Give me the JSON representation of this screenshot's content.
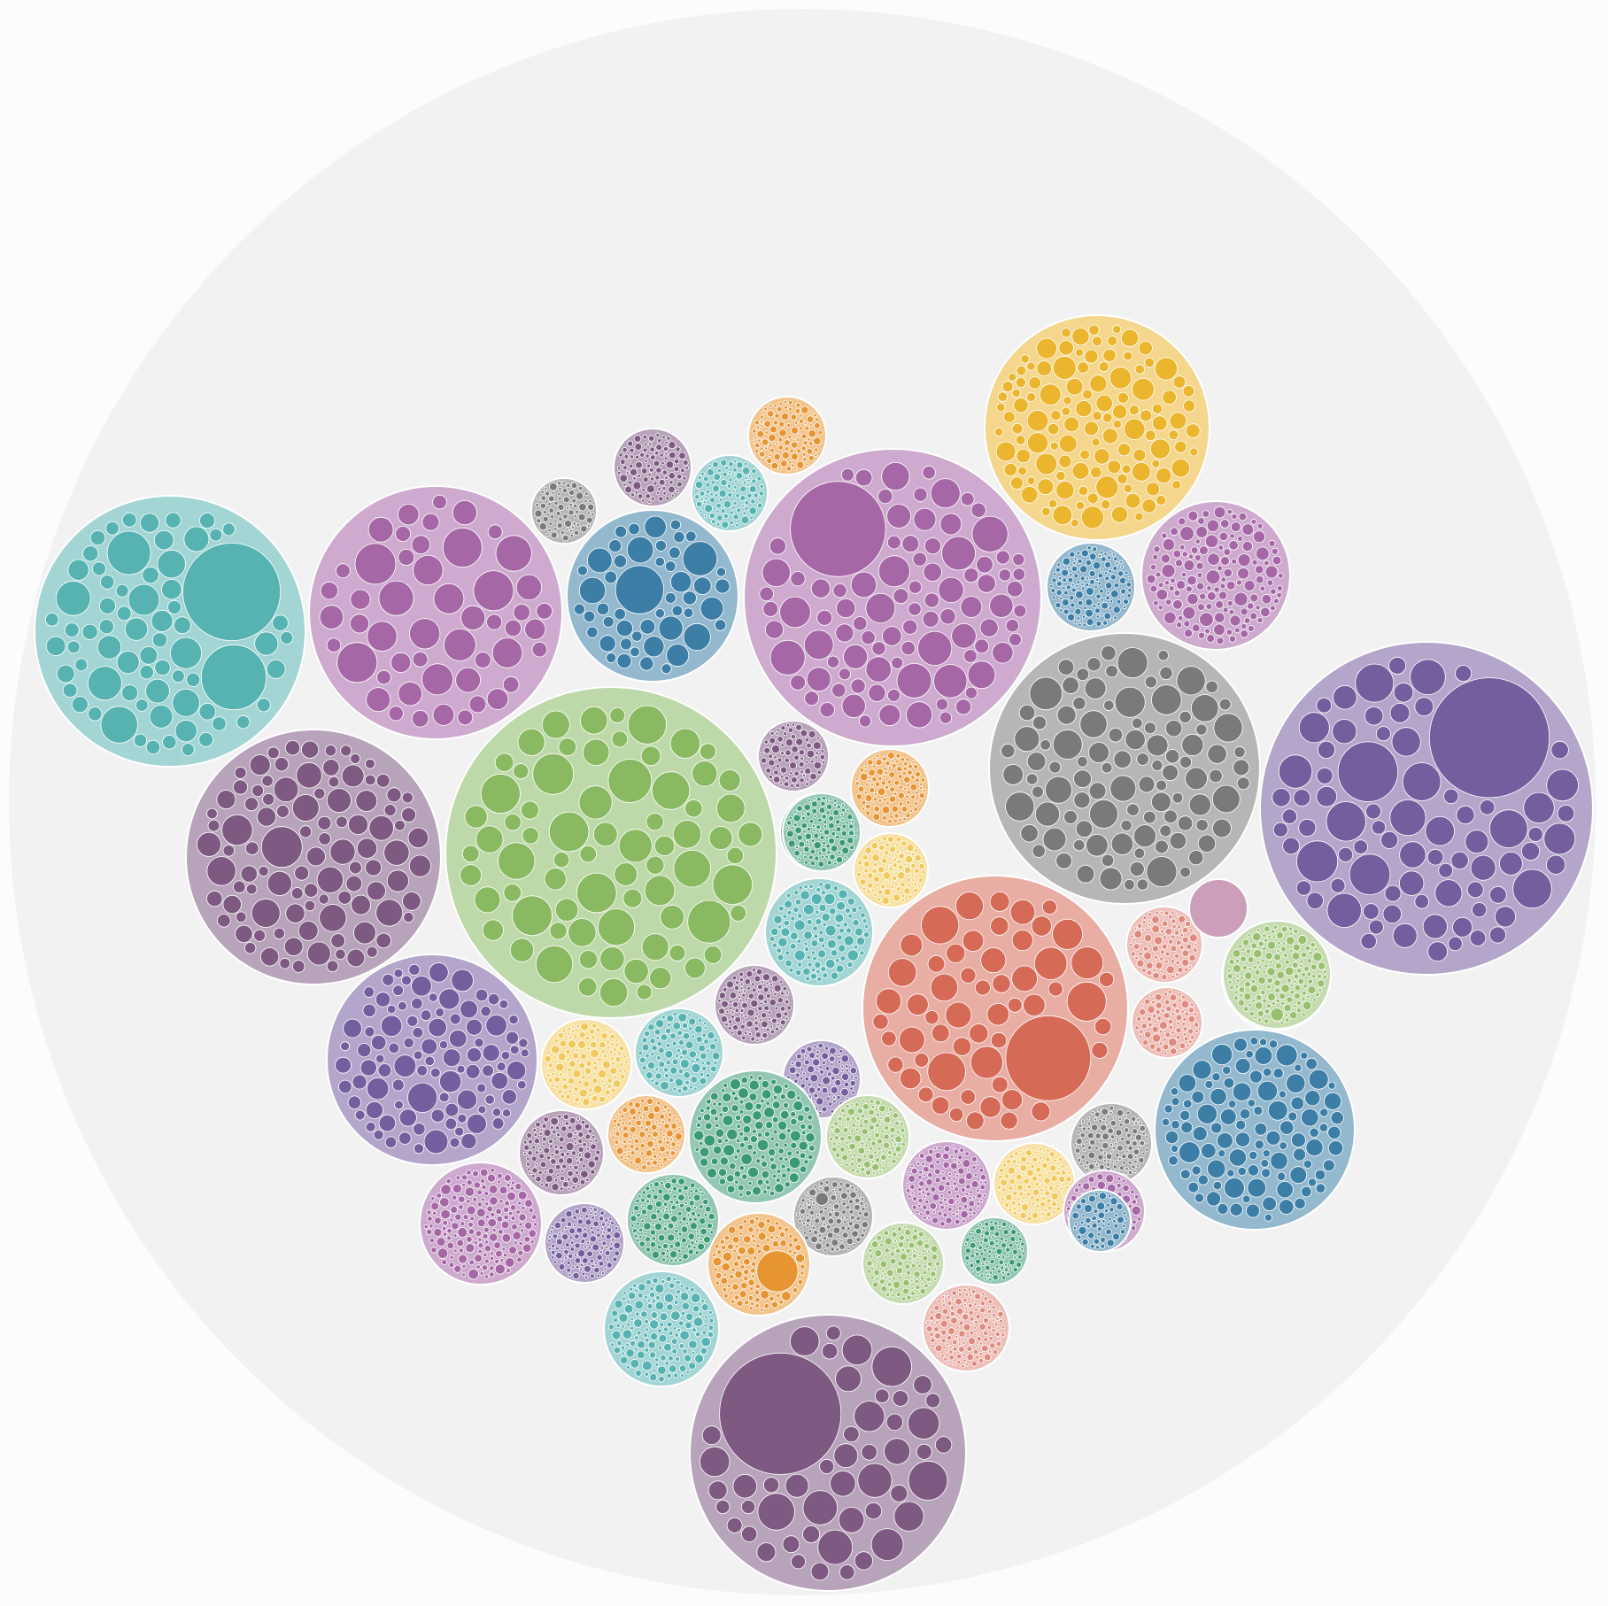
{
  "chart_data": {
    "type": "circle-packing",
    "title": "",
    "root": {
      "background_color": "#f2f2f2"
    },
    "legend": "none",
    "palette": {
      "teal": "#56b3b1",
      "purple": "#a667a6",
      "blue": "#3d7ea6",
      "green": "#89ba62",
      "gray": "#7a7a7a",
      "yellow": "#ebb52d",
      "plum": "#7e5a82",
      "violet": "#755e9e",
      "red": "#d56a57",
      "orange": "#e79432",
      "emerald": "#3a9a74",
      "magenta": "#a24e80",
      "lightyellow": "#f0c95a",
      "lightgreen": "#97c06f",
      "salmon": "#de8b7e"
    },
    "groups": [
      {
        "id": "g01",
        "color": "teal",
        "leaf_count": 70,
        "big_leaves": [
          0.18,
          0.12,
          0.08
        ]
      },
      {
        "id": "g02",
        "color": "purple",
        "leaf_count": 48,
        "big_leaves": [
          0.06,
          0.05
        ]
      },
      {
        "id": "g03",
        "color": "blue",
        "leaf_count": 50,
        "big_leaves": [
          0.14,
          0.1,
          0.07
        ]
      },
      {
        "id": "g04",
        "color": "purple",
        "leaf_count": 95,
        "big_leaves": [
          0.16,
          0.06
        ]
      },
      {
        "id": "g05",
        "color": "yellow",
        "leaf_count": 120,
        "big_leaves": [
          0.05
        ]
      },
      {
        "id": "g06",
        "color": "green",
        "leaf_count": 70,
        "big_leaves": [
          0.06,
          0.05,
          0.05
        ]
      },
      {
        "id": "g07",
        "color": "plum",
        "leaf_count": 100,
        "big_leaves": [
          0.08,
          0.06,
          0.05
        ]
      },
      {
        "id": "g08",
        "color": "gray",
        "leaf_count": 100,
        "big_leaves": [
          0.06,
          0.05,
          0.04
        ]
      },
      {
        "id": "g09",
        "color": "violet",
        "leaf_count": 85,
        "big_leaves": [
          0.18,
          0.09,
          0.05
        ]
      },
      {
        "id": "g10",
        "color": "violet",
        "leaf_count": 100,
        "big_leaves": [
          0.07,
          0.05
        ]
      },
      {
        "id": "g11",
        "color": "red",
        "leaf_count": 55,
        "big_leaves": [
          0.16,
          0.04
        ]
      },
      {
        "id": "g12",
        "color": "blue",
        "leaf_count": 110,
        "big_leaves": []
      },
      {
        "id": "g13",
        "color": "plum",
        "leaf_count": 60,
        "big_leaves": [
          0.22
        ]
      },
      {
        "id": "g14",
        "color": "purple",
        "leaf_count": 140,
        "big_leaves": []
      },
      {
        "id": "g15",
        "color": "blue",
        "leaf_count": 160,
        "big_leaves": []
      },
      {
        "id": "g16",
        "color": "magenta",
        "leaf_count": 45,
        "big_leaves": [
          0.2
        ]
      },
      {
        "id": "g17",
        "color": "teal",
        "leaf_count": 110,
        "big_leaves": []
      },
      {
        "id": "g18",
        "color": "gray",
        "leaf_count": 90,
        "big_leaves": []
      },
      {
        "id": "g19",
        "color": "orange",
        "leaf_count": 130,
        "big_leaves": []
      },
      {
        "id": "g20",
        "color": "plum",
        "leaf_count": 110,
        "big_leaves": []
      },
      {
        "id": "g21",
        "color": "emerald",
        "leaf_count": 100,
        "big_leaves": []
      },
      {
        "id": "g22",
        "color": "orange",
        "leaf_count": 120,
        "big_leaves": []
      },
      {
        "id": "g23",
        "color": "lightyellow",
        "leaf_count": 120,
        "big_leaves": []
      },
      {
        "id": "g24",
        "color": "teal",
        "leaf_count": 120,
        "big_leaves": []
      },
      {
        "id": "g25",
        "color": "plum",
        "leaf_count": 140,
        "big_leaves": []
      },
      {
        "id": "g26",
        "color": "violet",
        "leaf_count": 120,
        "big_leaves": []
      },
      {
        "id": "g27",
        "color": "lightyellow",
        "leaf_count": 140,
        "big_leaves": []
      },
      {
        "id": "g28",
        "color": "teal",
        "leaf_count": 120,
        "big_leaves": []
      },
      {
        "id": "g29",
        "color": "emerald",
        "leaf_count": 170,
        "big_leaves": []
      },
      {
        "id": "g30",
        "color": "lightgreen",
        "leaf_count": 170,
        "big_leaves": []
      },
      {
        "id": "g31",
        "color": "orange",
        "leaf_count": 150,
        "big_leaves": []
      },
      {
        "id": "g32",
        "color": "plum",
        "leaf_count": 140,
        "big_leaves": []
      },
      {
        "id": "g33",
        "color": "purple",
        "leaf_count": 180,
        "big_leaves": []
      },
      {
        "id": "g34",
        "color": "violet",
        "leaf_count": 150,
        "big_leaves": []
      },
      {
        "id": "g35",
        "color": "emerald",
        "leaf_count": 180,
        "big_leaves": []
      },
      {
        "id": "g36",
        "color": "gray",
        "leaf_count": 150,
        "big_leaves": [
          0.08
        ]
      },
      {
        "id": "g37",
        "color": "purple",
        "leaf_count": 160,
        "big_leaves": []
      },
      {
        "id": "g38",
        "color": "lightyellow",
        "leaf_count": 160,
        "big_leaves": []
      },
      {
        "id": "g39",
        "color": "gray",
        "leaf_count": 180,
        "big_leaves": []
      },
      {
        "id": "g40",
        "color": "blue",
        "leaf_count": 100,
        "big_leaves": []
      },
      {
        "id": "g41",
        "color": "orange",
        "leaf_count": 140,
        "big_leaves": [
          0.2
        ]
      },
      {
        "id": "g42",
        "color": "lightgreen",
        "leaf_count": 160,
        "big_leaves": []
      },
      {
        "id": "g43",
        "color": "emerald",
        "leaf_count": 140,
        "big_leaves": []
      },
      {
        "id": "g44",
        "color": "teal",
        "leaf_count": 180,
        "big_leaves": []
      },
      {
        "id": "g45",
        "color": "salmon",
        "leaf_count": 180,
        "big_leaves": []
      },
      {
        "id": "g46",
        "color": "purple",
        "leaf_count": 80,
        "big_leaves": [
          0.12
        ]
      },
      {
        "id": "g47",
        "color": "gray",
        "leaf_count": 80,
        "big_leaves": []
      },
      {
        "id": "g48",
        "color": "teal",
        "leaf_count": 90,
        "big_leaves": []
      },
      {
        "id": "g49",
        "color": "orange",
        "leaf_count": 110,
        "big_leaves": []
      },
      {
        "id": "g50",
        "color": "lightyellow",
        "leaf_count": 110,
        "big_leaves": []
      },
      {
        "id": "g51",
        "color": "salmon",
        "leaf_count": 110,
        "big_leaves": []
      },
      {
        "id": "g52",
        "color": "salmon",
        "leaf_count": 90,
        "big_leaves": []
      },
      {
        "id": "g53",
        "color": "lightgreen",
        "leaf_count": 180,
        "big_leaves": [
          0.06
        ]
      },
      {
        "id": "g54",
        "color": "magenta",
        "leaf_count": 0,
        "big_leaves": []
      },
      {
        "id": "g55",
        "color": "blue",
        "leaf_count": 60,
        "big_leaves": []
      },
      {
        "id": "g56",
        "color": "plum",
        "leaf_count": 90,
        "big_leaves": []
      },
      {
        "id": "g57",
        "color": "emerald",
        "leaf_count": 140,
        "big_leaves": []
      }
    ]
  }
}
